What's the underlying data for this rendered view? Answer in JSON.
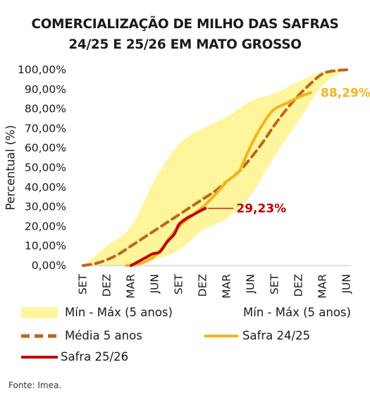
{
  "title_line1": "COMERCIALIZAÇÃO DE MILHO DAS SAFRAS",
  "title_line2": "24/25 E 25/26 EM MATO GROSSO",
  "source": "Fonte: Imea.",
  "colors": {
    "band": "#fff59d",
    "media": "#c0651b",
    "safra2425": "#f4b41a",
    "safra2526": "#c00000",
    "label2526": "#c00000",
    "label2425": "#f4b41a"
  },
  "chart_data": {
    "type": "line",
    "ylabel": "Percentual (%)",
    "ylim": [
      0,
      100
    ],
    "y_ticks": [
      "0,00%",
      "10,00%",
      "20,00%",
      "30,00%",
      "40,00%",
      "50,00%",
      "60,00%",
      "70,00%",
      "80,00%",
      "90,00%",
      "100,00%"
    ],
    "x_ticks": [
      "SET",
      "DEZ",
      "MAR",
      "JUN",
      "SET",
      "DEZ",
      "MAR",
      "JUN",
      "SET",
      "DEZ",
      "MAR",
      "JUN"
    ],
    "grid": false,
    "legend_position": "bottom",
    "band": {
      "name": "Mín - Máx (5 anos)",
      "x": [
        0,
        1,
        2,
        3,
        4,
        5,
        6,
        7,
        8,
        9,
        10,
        11
      ],
      "min": [
        0,
        0,
        0,
        3,
        8,
        18,
        24,
        36,
        56,
        74,
        92,
        100
      ],
      "max": [
        0,
        10,
        20,
        44,
        62,
        70,
        76,
        84,
        88,
        94,
        99,
        100
      ]
    },
    "series": [
      {
        "name": "Média 5 anos",
        "x": [
          0,
          0.5,
          1,
          1.5,
          2,
          2.5,
          3,
          3.5,
          4,
          4.5,
          5,
          5.5,
          6,
          6.5,
          7,
          7.5,
          8,
          8.5,
          9,
          9.5,
          10,
          10.5,
          11
        ],
        "values": [
          0,
          1,
          3,
          6,
          10,
          14,
          18,
          22,
          26,
          30,
          34,
          38,
          43,
          48,
          55,
          63,
          72,
          80,
          87,
          93,
          98,
          99.5,
          100
        ]
      },
      {
        "name": "Safra 24/25",
        "x": [
          1.8,
          2.2,
          2.6,
          3,
          3.3,
          3.6,
          4,
          4.5,
          5,
          5.5,
          6,
          6.5,
          6.8,
          7.2,
          7.7,
          8,
          8.5,
          9,
          9.2,
          9.5
        ],
        "values": [
          0,
          0.5,
          2,
          5,
          9,
          14,
          20,
          25,
          30,
          36,
          43,
          48,
          56,
          66,
          76,
          80,
          83,
          86,
          87,
          88.29
        ]
      },
      {
        "name": "Safra 25/26",
        "x": [
          2,
          2.3,
          2.6,
          2.9,
          3.2,
          3.5,
          3.8,
          4,
          4.3,
          4.6,
          4.9,
          5.1
        ],
        "values": [
          0,
          2,
          4,
          6,
          7,
          12,
          16,
          21,
          24,
          26,
          28,
          29.23
        ]
      }
    ],
    "annotations": [
      {
        "text": "29,23%",
        "series": "Safra 25/26"
      },
      {
        "text": "88,29%",
        "series": "Safra 24/25"
      }
    ]
  }
}
